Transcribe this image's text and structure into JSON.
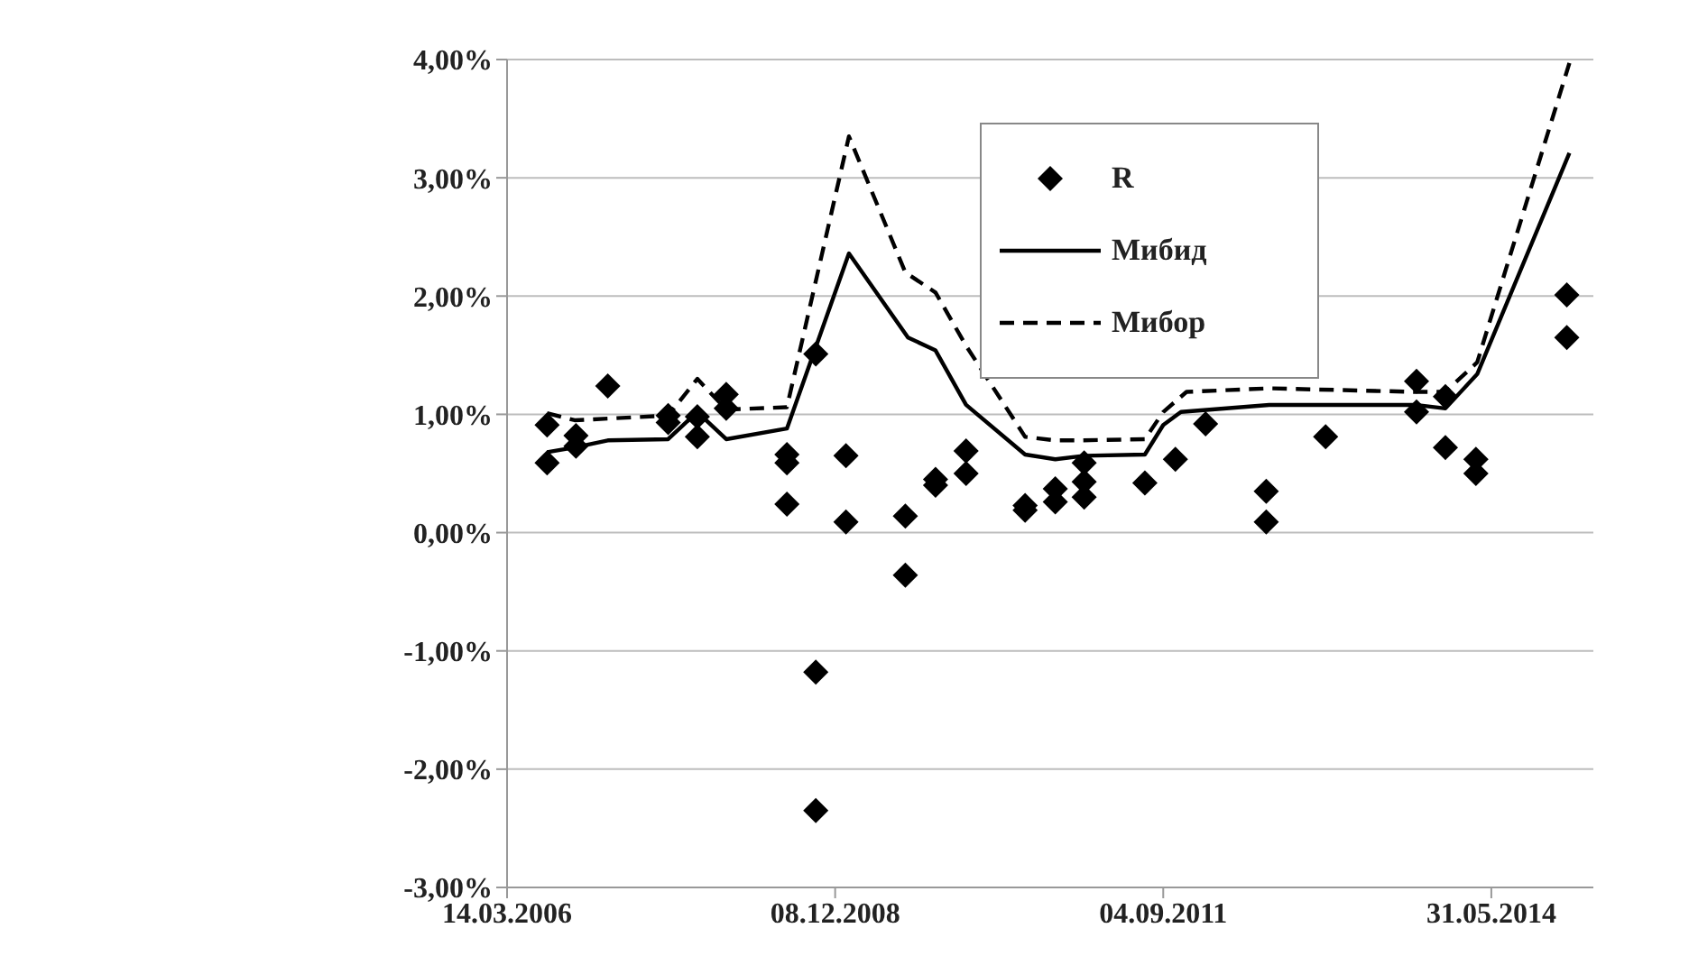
{
  "chart_data": {
    "type": "line",
    "xlim": [
      "2006-03-14",
      "2015-04-07"
    ],
    "xticks": [
      {
        "value": "2006-03-14",
        "label": "14.03.2006"
      },
      {
        "value": "2008-12-08",
        "label": "08.12.2008"
      },
      {
        "value": "2011-09-04",
        "label": "04.09.2011"
      },
      {
        "value": "2014-05-31",
        "label": "31.05.2014"
      }
    ],
    "ylim": [
      -3,
      4
    ],
    "yticks": [
      {
        "value": 4,
        "label": "4,00%"
      },
      {
        "value": 3,
        "label": "3,00%"
      },
      {
        "value": 2,
        "label": "2,00%"
      },
      {
        "value": 1,
        "label": "1,00%"
      },
      {
        "value": 0,
        "label": "0,00%"
      },
      {
        "value": -1,
        "label": "-1,00%"
      },
      {
        "value": -2,
        "label": "-2,00%"
      },
      {
        "value": -3,
        "label": "-3,00%"
      }
    ],
    "grid": "y",
    "legend": "top right",
    "series": [
      {
        "name": "R",
        "type": "scatter",
        "marker": "diamond",
        "color": "#000000",
        "x": [
          "2006-07-14",
          "2006-07-14",
          "2006-10-10",
          "2006-10-10",
          "2007-01-15",
          "2007-07-18",
          "2007-07-18",
          "2007-10-15",
          "2007-10-15",
          "2008-01-11",
          "2008-01-11",
          "2008-07-14",
          "2008-07-14",
          "2008-07-14",
          "2008-10-10",
          "2008-10-10",
          "2008-10-10",
          "2009-01-10",
          "2009-01-10",
          "2009-07-10",
          "2009-07-10",
          "2009-10-10",
          "2009-10-10",
          "2010-01-11",
          "2010-01-11",
          "2010-07-10",
          "2010-07-10",
          "2010-10-10",
          "2010-10-10",
          "2011-01-06",
          "2011-01-06",
          "2011-01-06",
          "2011-07-10",
          "2011-10-11",
          "2012-01-11",
          "2012-07-14",
          "2012-07-14",
          "2013-01-11",
          "2013-10-15",
          "2013-10-15",
          "2014-01-11",
          "2014-01-11",
          "2014-04-14",
          "2014-04-14",
          "2015-01-16",
          "2015-01-16"
        ],
        "values": [
          0.91,
          0.59,
          0.82,
          0.73,
          1.24,
          0.99,
          0.93,
          0.98,
          0.81,
          1.17,
          1.05,
          0.66,
          0.59,
          0.24,
          1.51,
          -1.18,
          -2.35,
          0.65,
          0.09,
          0.14,
          -0.36,
          0.45,
          0.4,
          0.69,
          0.5,
          0.23,
          0.19,
          0.37,
          0.26,
          0.59,
          0.43,
          0.3,
          0.42,
          0.62,
          0.92,
          0.35,
          0.09,
          0.81,
          1.28,
          1.02,
          1.15,
          0.72,
          0.62,
          0.5,
          2.01,
          1.65
        ]
      },
      {
        "name": "Мибид",
        "marker": "none",
        "line_style": "solid",
        "color": "#000000",
        "x": [
          "2006-07-14",
          "2006-10-06",
          "2007-01-15",
          "2007-07-18",
          "2007-10-15",
          "2008-01-11",
          "2008-07-14",
          "2009-01-19",
          "2009-07-18",
          "2009-10-10",
          "2010-01-11",
          "2010-07-10",
          "2010-10-10",
          "2011-01-06",
          "2011-07-10",
          "2011-09-04",
          "2011-10-28",
          "2012-07-23",
          "2013-10-11",
          "2014-01-11",
          "2014-04-18",
          "2015-01-24"
        ],
        "values": [
          0.68,
          0.72,
          0.78,
          0.79,
          1.02,
          0.79,
          0.88,
          2.36,
          1.65,
          1.54,
          1.08,
          0.66,
          0.62,
          0.65,
          0.66,
          0.91,
          1.02,
          1.08,
          1.08,
          1.05,
          1.34,
          3.21
        ]
      },
      {
        "name": "Мибор",
        "marker": "none",
        "line_style": "dashed",
        "color": "#000000",
        "x": [
          "2006-07-14",
          "2006-10-06",
          "2007-07-18",
          "2007-10-15",
          "2008-01-11",
          "2008-07-14",
          "2009-01-19",
          "2009-07-10",
          "2009-10-10",
          "2010-01-11",
          "2010-07-10",
          "2010-10-10",
          "2010-12-24",
          "2011-07-10",
          "2011-09-04",
          "2011-11-14",
          "2012-07-23",
          "2013-10-11",
          "2014-01-11",
          "2014-04-18",
          "2015-01-24"
        ],
        "values": [
          1.01,
          0.95,
          0.99,
          1.3,
          1.04,
          1.06,
          3.35,
          2.2,
          2.03,
          1.58,
          0.81,
          0.78,
          0.78,
          0.79,
          1.02,
          1.19,
          1.22,
          1.19,
          1.19,
          1.44,
          3.97
        ]
      }
    ]
  }
}
